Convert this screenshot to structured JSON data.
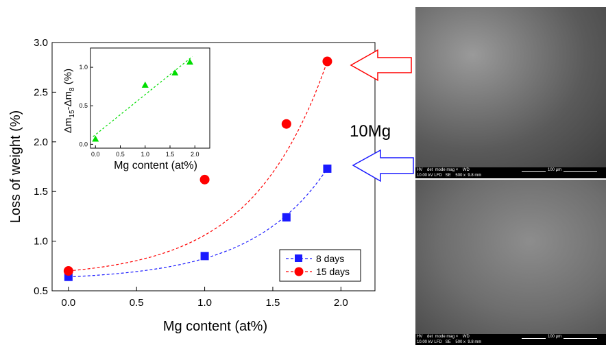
{
  "chart_data": [
    {
      "type": "scatter",
      "xlabel": "Mg content (at%)",
      "ylabel": "Loss of weight (%)",
      "xlim": [
        -0.12,
        2.25
      ],
      "ylim": [
        0.5,
        3.0
      ],
      "xticks": [
        "0.0",
        "0.5",
        "1.0",
        "1.5",
        "2.0"
      ],
      "yticks": [
        "0.5",
        "1.0",
        "1.5",
        "2.0",
        "2.5",
        "3.0"
      ],
      "legend_position": "bottom-right",
      "series": [
        {
          "name": "8 days",
          "marker": "square",
          "color": "#1a1aff",
          "x": [
            0.0,
            1.0,
            1.6,
            1.9
          ],
          "y": [
            0.64,
            0.85,
            1.24,
            1.73
          ]
        },
        {
          "name": "15 days",
          "marker": "circle",
          "color": "#ff0000",
          "x": [
            0.0,
            1.0,
            1.6,
            1.9
          ],
          "y": [
            0.7,
            1.62,
            2.18,
            2.81
          ]
        }
      ]
    },
    {
      "type": "scatter",
      "xlabel": "Mg content (at%)",
      "ylabel": "Δm15-Δm8 (%)",
      "xlim": [
        -0.1,
        2.3
      ],
      "ylim": [
        -0.05,
        1.25
      ],
      "xticks": [
        "0.0",
        "0.5",
        "1.0",
        "1.5",
        "2.0"
      ],
      "yticks": [
        "0.0",
        "0.5",
        "1.0"
      ],
      "series": [
        {
          "name": "",
          "marker": "triangle",
          "color": "#00dd00",
          "x": [
            0.0,
            1.0,
            1.6,
            1.9
          ],
          "y": [
            0.07,
            0.77,
            0.93,
            1.07
          ]
        }
      ]
    }
  ],
  "annotation": {
    "label": "10Mg"
  },
  "sem_images": [
    {
      "meta_line1": "HV    det  mode mag ×    WD",
      "meta_line2": "10.00 kV LFD   SE    500 x  9.8 mm",
      "scale_label": "100 μm"
    },
    {
      "meta_line1": "HV    det  mode mag ×    WD",
      "meta_line2": "10.00 kV LFD   SE    500 x  9.8 mm",
      "scale_label": "100 μm"
    }
  ],
  "colors": {
    "red_arrow": "#ff0000",
    "blue_arrow": "#1a1aff",
    "fit_green": "#00dd00"
  }
}
